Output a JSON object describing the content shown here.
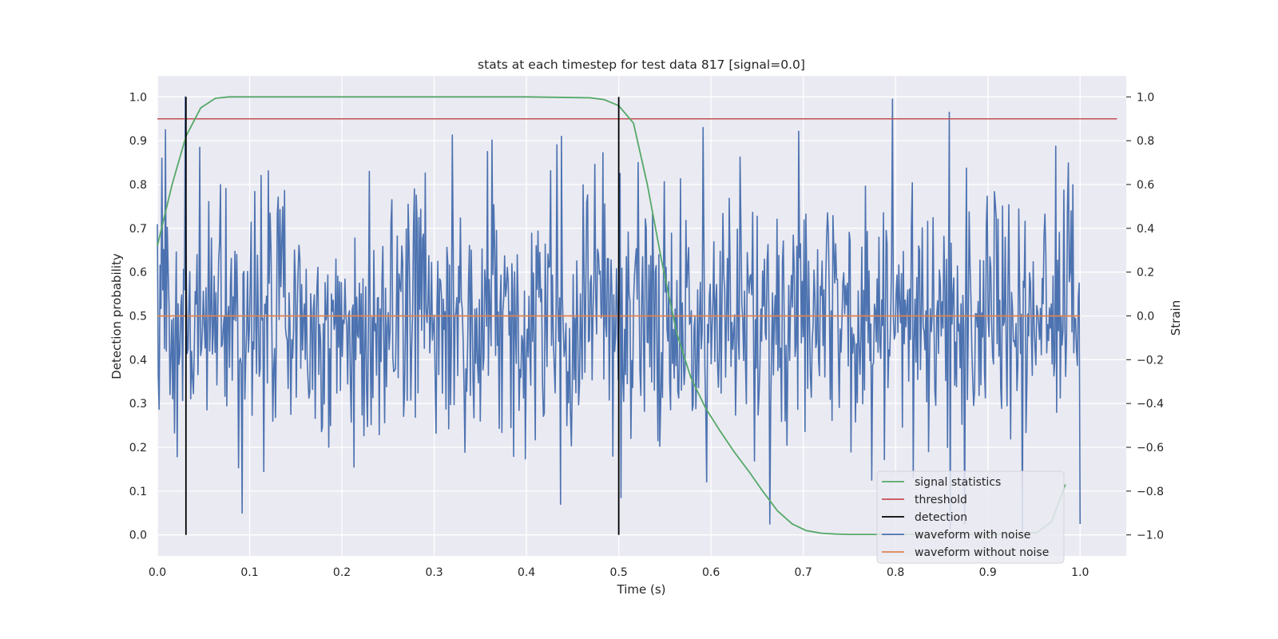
{
  "chart_data": {
    "type": "line",
    "title": "stats at each timestep for test data 817 [signal=0.0]",
    "xlabel": "Time (s)",
    "ylabel_left": "Detection probability",
    "ylabel_right": "Strain",
    "xlim": [
      0.0,
      1.05
    ],
    "ylim_left": [
      -0.048,
      1.048
    ],
    "ylim_right": [
      -1.096,
      1.096
    ],
    "x_ticks": [
      0.0,
      0.1,
      0.2,
      0.3,
      0.4,
      0.5,
      0.6,
      0.7,
      0.8,
      0.9,
      1.0
    ],
    "x_tick_labels": [
      "0.0",
      "0.1",
      "0.2",
      "0.3",
      "0.4",
      "0.5",
      "0.6",
      "0.7",
      "0.8",
      "0.9",
      "1.0"
    ],
    "y_left_ticks": [
      0.0,
      0.1,
      0.2,
      0.3,
      0.4,
      0.5,
      0.6,
      0.7,
      0.8,
      0.9,
      1.0
    ],
    "y_left_tick_labels": [
      "0.0",
      "0.1",
      "0.2",
      "0.3",
      "0.4",
      "0.5",
      "0.6",
      "0.7",
      "0.8",
      "0.9",
      "1.0"
    ],
    "y_right_ticks": [
      -1.0,
      -0.8,
      -0.6,
      -0.4,
      -0.2,
      0.0,
      0.2,
      0.4,
      0.6,
      0.8,
      1.0
    ],
    "y_right_tick_labels": [
      "−1.0",
      "−0.8",
      "−0.6",
      "−0.4",
      "−0.2",
      "0.0",
      "0.2",
      "0.4",
      "0.6",
      "0.8",
      "1.0"
    ],
    "grid": true,
    "background": "#EAEAF2",
    "legend_position": "lower-right",
    "series": [
      {
        "name": "signal statistics",
        "axis": "left",
        "color": "#55A868",
        "x": [
          0.0,
          0.016,
          0.031,
          0.047,
          0.063,
          0.078,
          0.1,
          0.2,
          0.3,
          0.4,
          0.469,
          0.484,
          0.5,
          0.516,
          0.531,
          0.547,
          0.563,
          0.578,
          0.594,
          0.609,
          0.625,
          0.641,
          0.656,
          0.672,
          0.688,
          0.703,
          0.719,
          0.734,
          0.75,
          0.8,
          0.9,
          0.953,
          0.969,
          0.984
        ],
        "y": [
          0.66,
          0.8,
          0.91,
          0.975,
          0.997,
          1.0,
          1.0,
          1.0,
          1.0,
          1.0,
          0.998,
          0.994,
          0.98,
          0.94,
          0.8,
          0.62,
          0.46,
          0.36,
          0.29,
          0.24,
          0.19,
          0.145,
          0.1,
          0.055,
          0.025,
          0.01,
          0.004,
          0.002,
          0.001,
          0.001,
          0.001,
          0.005,
          0.03,
          0.115
        ]
      },
      {
        "name": "threshold",
        "axis": "left",
        "color": "#C44E52",
        "x": [
          0.0,
          1.04
        ],
        "y": [
          0.95,
          0.95
        ]
      },
      {
        "name": "detection",
        "axis": "left",
        "color": "#000000",
        "x": [
          0.031,
          0.5
        ],
        "y": [
          1.0,
          1.0
        ]
      },
      {
        "name": "waveform with noise",
        "axis": "right",
        "color": "#4C72B0",
        "n_points": 1024,
        "x_range": [
          0.0,
          1.0
        ],
        "noise_std": 0.3,
        "seed": 817,
        "spikes": [
          {
            "x": 0.0049,
            "y": 0.72
          },
          {
            "x": 0.0303,
            "y": 1.0
          },
          {
            "x": 0.0459,
            "y": 0.77
          },
          {
            "x": 0.2295,
            "y": 0.66
          },
          {
            "x": 0.4365,
            "y": -0.86
          },
          {
            "x": 0.4375,
            "y": 0.82
          },
          {
            "x": 0.5029,
            "y": -0.83
          },
          {
            "x": 0.5215,
            "y": 0.7
          },
          {
            "x": 0.5918,
            "y": 0.86
          },
          {
            "x": 0.6641,
            "y": -0.95
          },
          {
            "x": 0.7969,
            "y": 0.99
          },
          {
            "x": 0.8584,
            "y": 0.93
          },
          {
            "x": 0.8594,
            "y": -0.97
          },
          {
            "x": 0.875,
            "y": -0.95
          },
          {
            "x": 0.9375,
            "y": -0.98
          },
          {
            "x": 0.9902,
            "y": 0.48
          },
          {
            "x": 1.0,
            "y": -0.95
          }
        ]
      },
      {
        "name": "waveform without noise",
        "axis": "right",
        "color": "#DD8452",
        "x": [
          0.0,
          1.0
        ],
        "y": [
          0.0,
          0.0
        ]
      }
    ]
  }
}
